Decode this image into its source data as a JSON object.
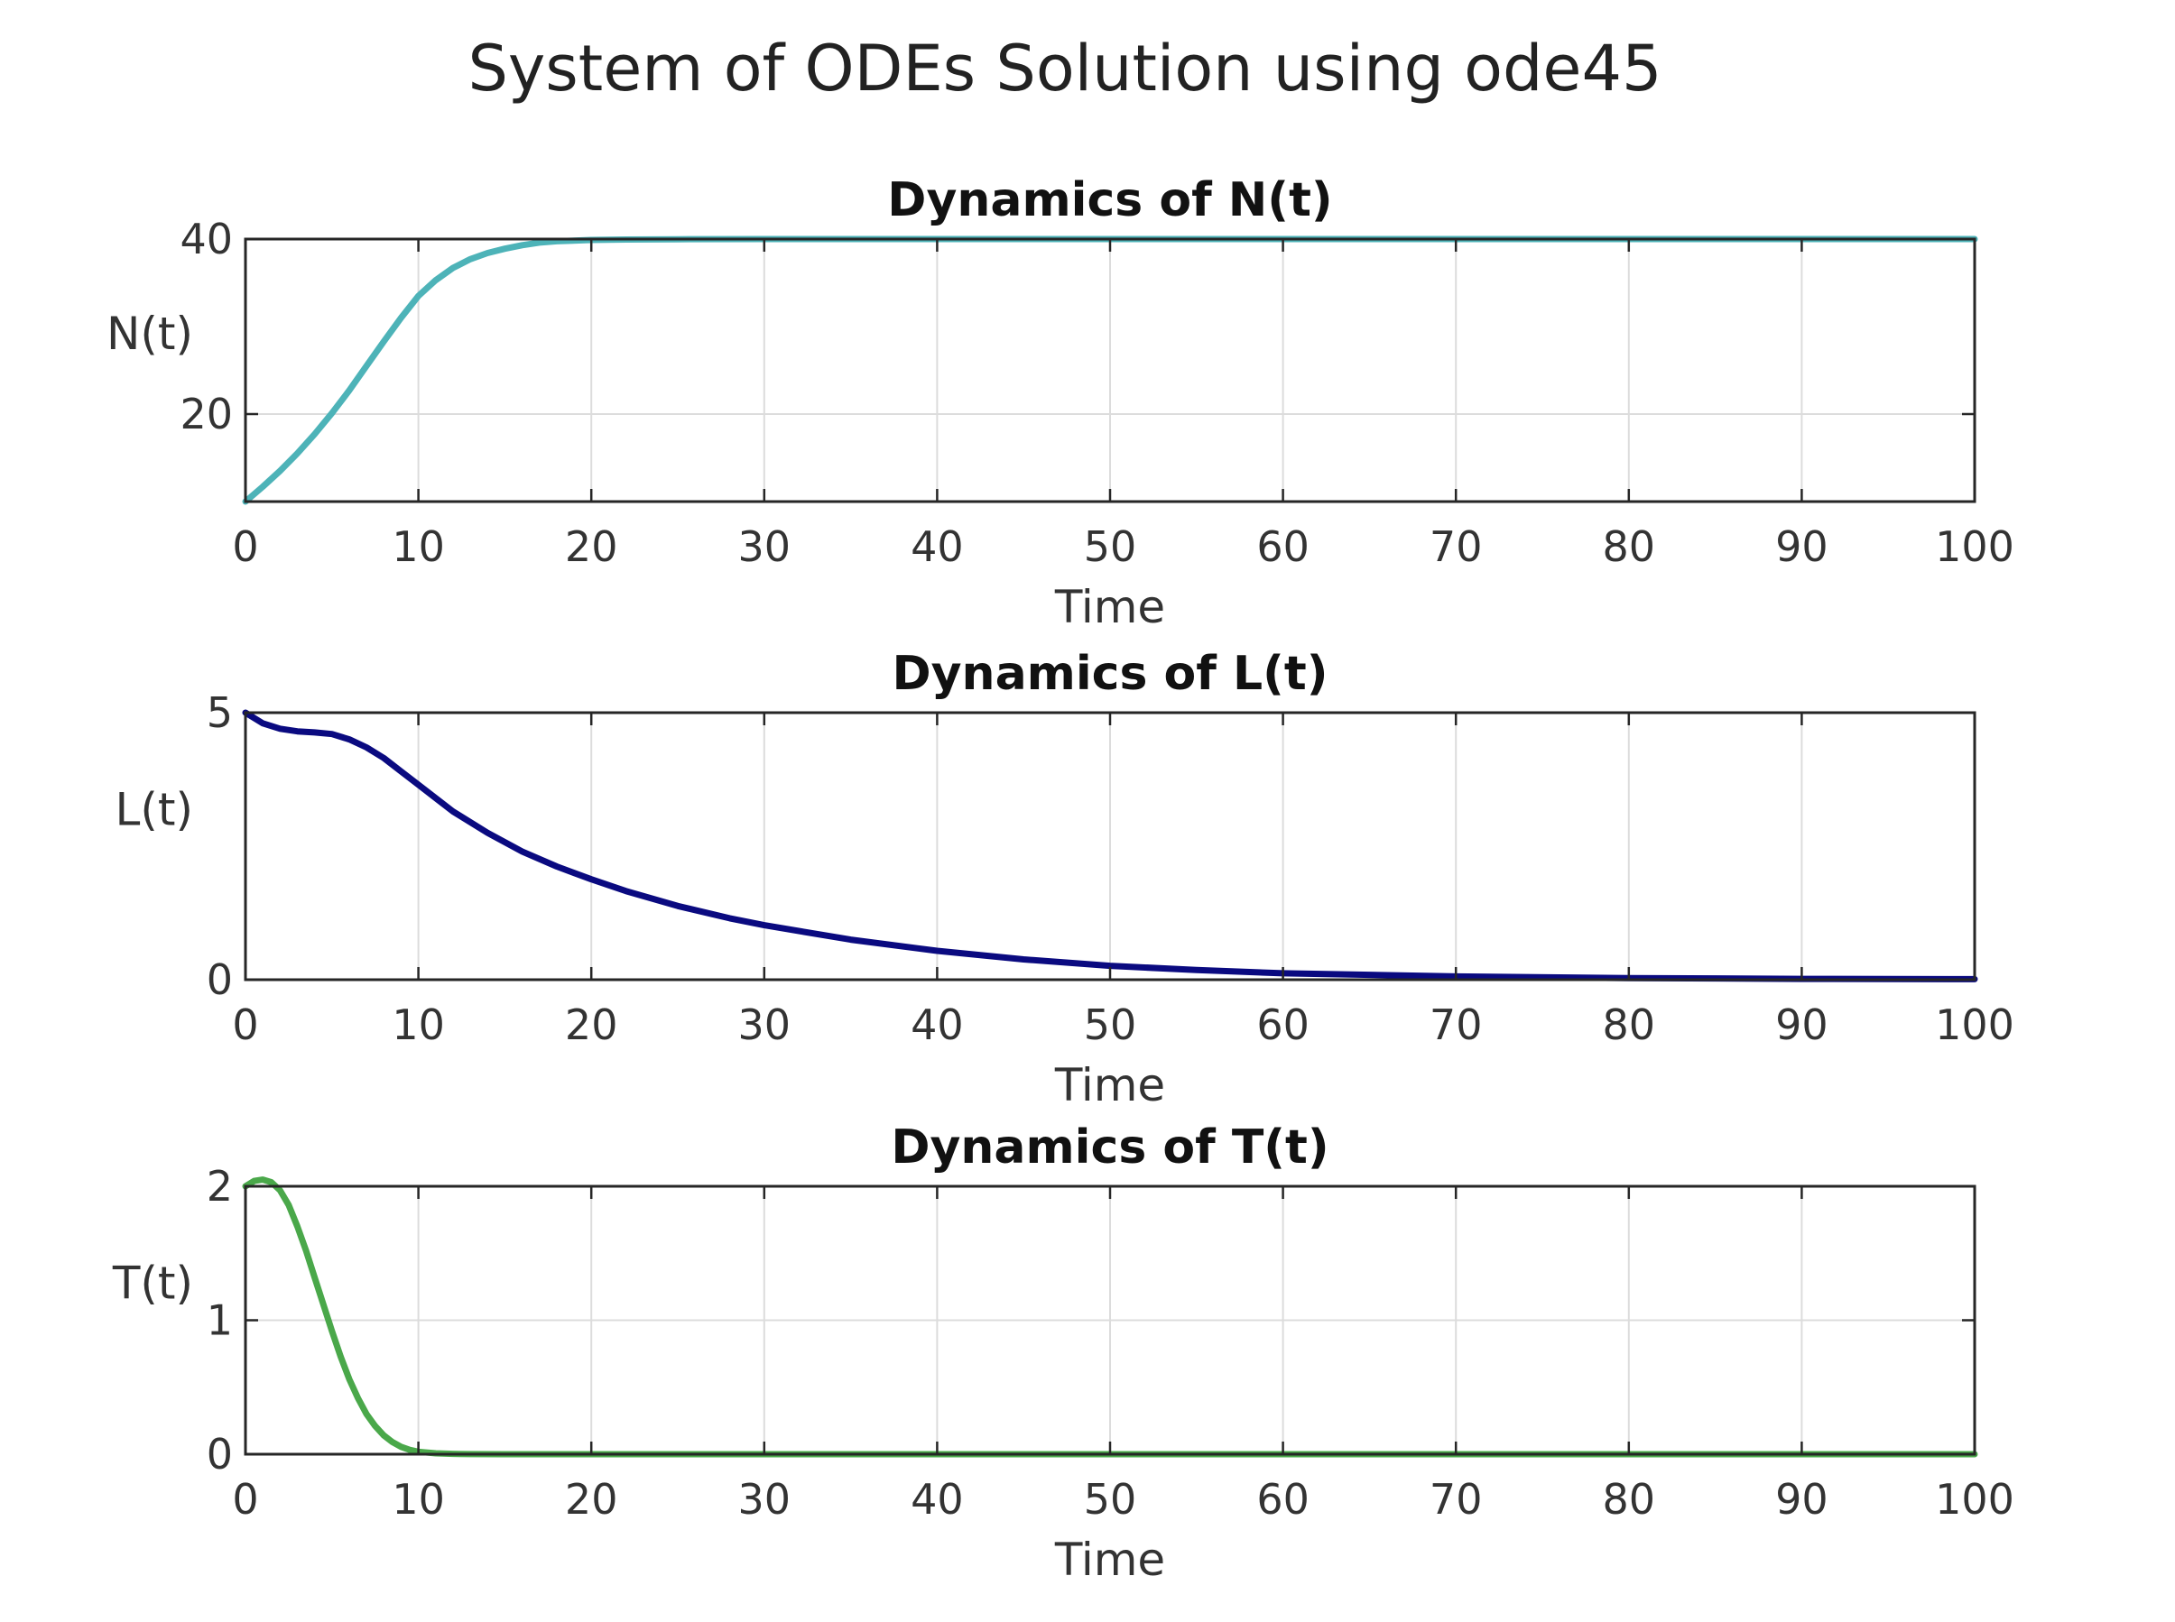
{
  "figure": {
    "title": "System of ODEs Solution using ode45"
  },
  "chart_data": [
    {
      "type": "line",
      "title": "Dynamics of N(t)",
      "xlabel": "Time",
      "ylabel": "N(t)",
      "xlim": [
        0,
        100
      ],
      "ylim": [
        10,
        40
      ],
      "xticks": [
        0,
        10,
        20,
        30,
        40,
        50,
        60,
        70,
        80,
        90,
        100
      ],
      "yticks": [
        20,
        40
      ],
      "grid": true,
      "color": "#4db3b8",
      "series": [
        {
          "x": [
            0,
            1,
            2,
            3,
            4,
            5,
            6,
            7,
            8,
            9,
            10,
            11,
            12,
            13,
            14,
            15,
            16,
            17,
            18,
            20,
            22,
            25,
            30,
            40,
            50,
            60,
            70,
            80,
            90,
            100
          ],
          "y": [
            10,
            11.7,
            13.5,
            15.5,
            17.7,
            20.1,
            22.7,
            25.5,
            28.3,
            31,
            33.5,
            35.3,
            36.7,
            37.7,
            38.4,
            38.9,
            39.3,
            39.6,
            39.75,
            39.9,
            39.95,
            39.98,
            40,
            40,
            40,
            40,
            40,
            40,
            40,
            40
          ]
        }
      ]
    },
    {
      "type": "line",
      "title": "Dynamics of L(t)",
      "xlabel": "Time",
      "ylabel": "L(t)",
      "xlim": [
        0,
        100
      ],
      "ylim": [
        0,
        5
      ],
      "xticks": [
        0,
        10,
        20,
        30,
        40,
        50,
        60,
        70,
        80,
        90,
        100
      ],
      "yticks": [
        0,
        5
      ],
      "grid": true,
      "color": "#0a0a80",
      "series": [
        {
          "x": [
            0,
            1,
            2,
            3,
            4,
            5,
            6,
            7,
            8,
            9,
            10,
            12,
            14,
            16,
            18,
            20,
            22,
            25,
            28,
            30,
            35,
            40,
            45,
            50,
            55,
            60,
            70,
            80,
            90,
            100
          ],
          "y": [
            5,
            4.8,
            4.7,
            4.65,
            4.63,
            4.6,
            4.5,
            4.35,
            4.15,
            3.9,
            3.65,
            3.15,
            2.75,
            2.4,
            2.12,
            1.88,
            1.66,
            1.38,
            1.15,
            1.02,
            0.75,
            0.54,
            0.38,
            0.26,
            0.18,
            0.12,
            0.06,
            0.03,
            0.015,
            0.01
          ]
        }
      ]
    },
    {
      "type": "line",
      "title": "Dynamics of T(t)",
      "xlabel": "Time",
      "ylabel": "T(t)",
      "xlim": [
        0,
        100
      ],
      "ylim": [
        0,
        2
      ],
      "xticks": [
        0,
        10,
        20,
        30,
        40,
        50,
        60,
        70,
        80,
        90,
        100
      ],
      "yticks": [
        0,
        1,
        2
      ],
      "grid": true,
      "color": "#4aa84a",
      "series": [
        {
          "x": [
            0,
            0.5,
            1,
            1.5,
            2,
            2.5,
            3,
            3.5,
            4,
            4.5,
            5,
            5.5,
            6,
            6.5,
            7,
            7.5,
            8,
            8.5,
            9,
            9.5,
            10,
            11,
            12,
            13,
            15,
            20,
            30,
            50,
            75,
            100
          ],
          "y": [
            2,
            2.04,
            2.05,
            2.03,
            1.97,
            1.86,
            1.7,
            1.52,
            1.32,
            1.12,
            0.92,
            0.73,
            0.56,
            0.42,
            0.3,
            0.21,
            0.14,
            0.09,
            0.055,
            0.032,
            0.018,
            0.007,
            0.003,
            0.001,
            0,
            0,
            0,
            0,
            0,
            0
          ]
        }
      ]
    }
  ]
}
